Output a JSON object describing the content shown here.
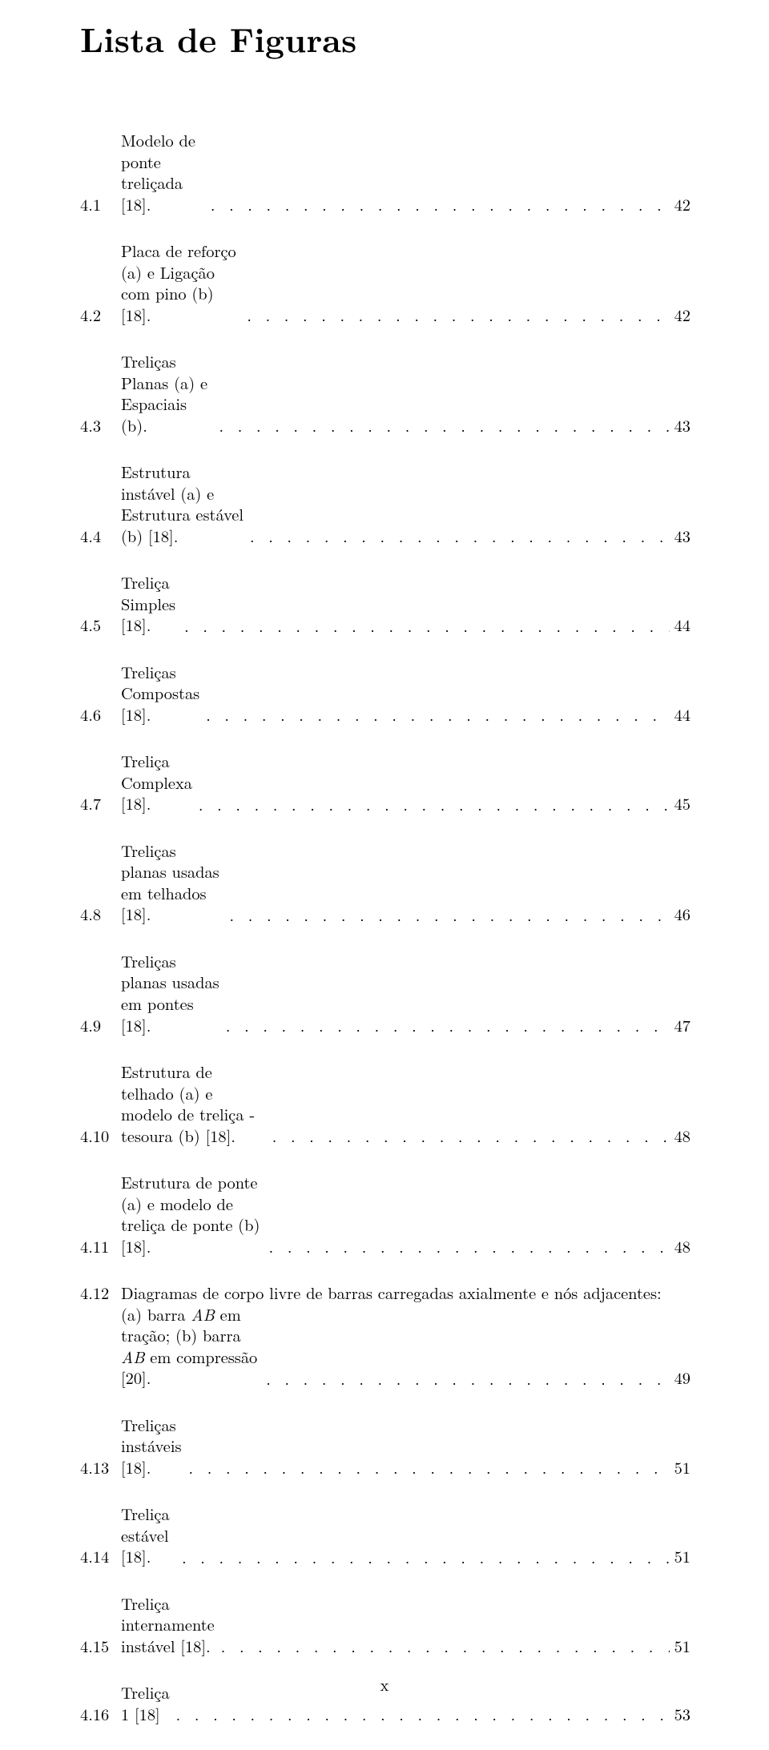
{
  "title": "Lista de Figuras",
  "page_number_label": "x",
  "font": {
    "title_size_pt": 28,
    "body_size_pt": 12,
    "family": "Computer Modern / Latin Modern",
    "color": "#000000",
    "background": "#ffffff"
  },
  "entries": [
    {
      "num": "4.1",
      "text": "Modelo de ponte treliçada [18].",
      "page": "42"
    },
    {
      "num": "4.2",
      "text": "Placa de reforço (a) e Ligação com pino (b) [18].",
      "page": "42"
    },
    {
      "num": "4.3",
      "text": "Treliças Planas (a) e Espaciais (b).",
      "page": "43"
    },
    {
      "num": "4.4",
      "text": "Estrutura instável (a) e Estrutura estável (b) [18].",
      "page": "43"
    },
    {
      "num": "4.5",
      "text": "Treliça Simples [18].",
      "page": "44"
    },
    {
      "num": "4.6",
      "text": "Treliças Compostas [18].",
      "page": "44"
    },
    {
      "num": "4.7",
      "text": "Treliça Complexa [18].",
      "page": "45"
    },
    {
      "num": "4.8",
      "text": "Treliças planas usadas em telhados [18].",
      "page": "46"
    },
    {
      "num": "4.9",
      "text": "Treliças planas usadas em pontes [18].",
      "page": "47"
    },
    {
      "num": "4.10",
      "text": "Estrutura de telhado (a) e modelo de treliça - tesoura (b) [18].",
      "page": "48"
    },
    {
      "num": "4.11",
      "text": "Estrutura de ponte (a) e modelo de treliça de ponte (b) [18].",
      "page": "48"
    },
    {
      "num": "4.12",
      "multiline": true,
      "line1": "Diagramas de corpo livre de barras carregadas axialmente e nós adjacentes:",
      "line2_html": "(a) barra <span class='it'>AB</span> em tração; (b) barra <span class='it'>AB</span> em compressão [20].",
      "page": "49"
    },
    {
      "num": "4.13",
      "text": "Treliças instáveis [18].",
      "page": "51"
    },
    {
      "num": "4.14",
      "text": "Treliça estável [18].",
      "page": "51"
    },
    {
      "num": "4.15",
      "text": "Treliça internamente instável [18].",
      "page": "51"
    },
    {
      "num": "4.16",
      "text": "Treliça 1 [18]",
      "page": "53"
    }
  ]
}
